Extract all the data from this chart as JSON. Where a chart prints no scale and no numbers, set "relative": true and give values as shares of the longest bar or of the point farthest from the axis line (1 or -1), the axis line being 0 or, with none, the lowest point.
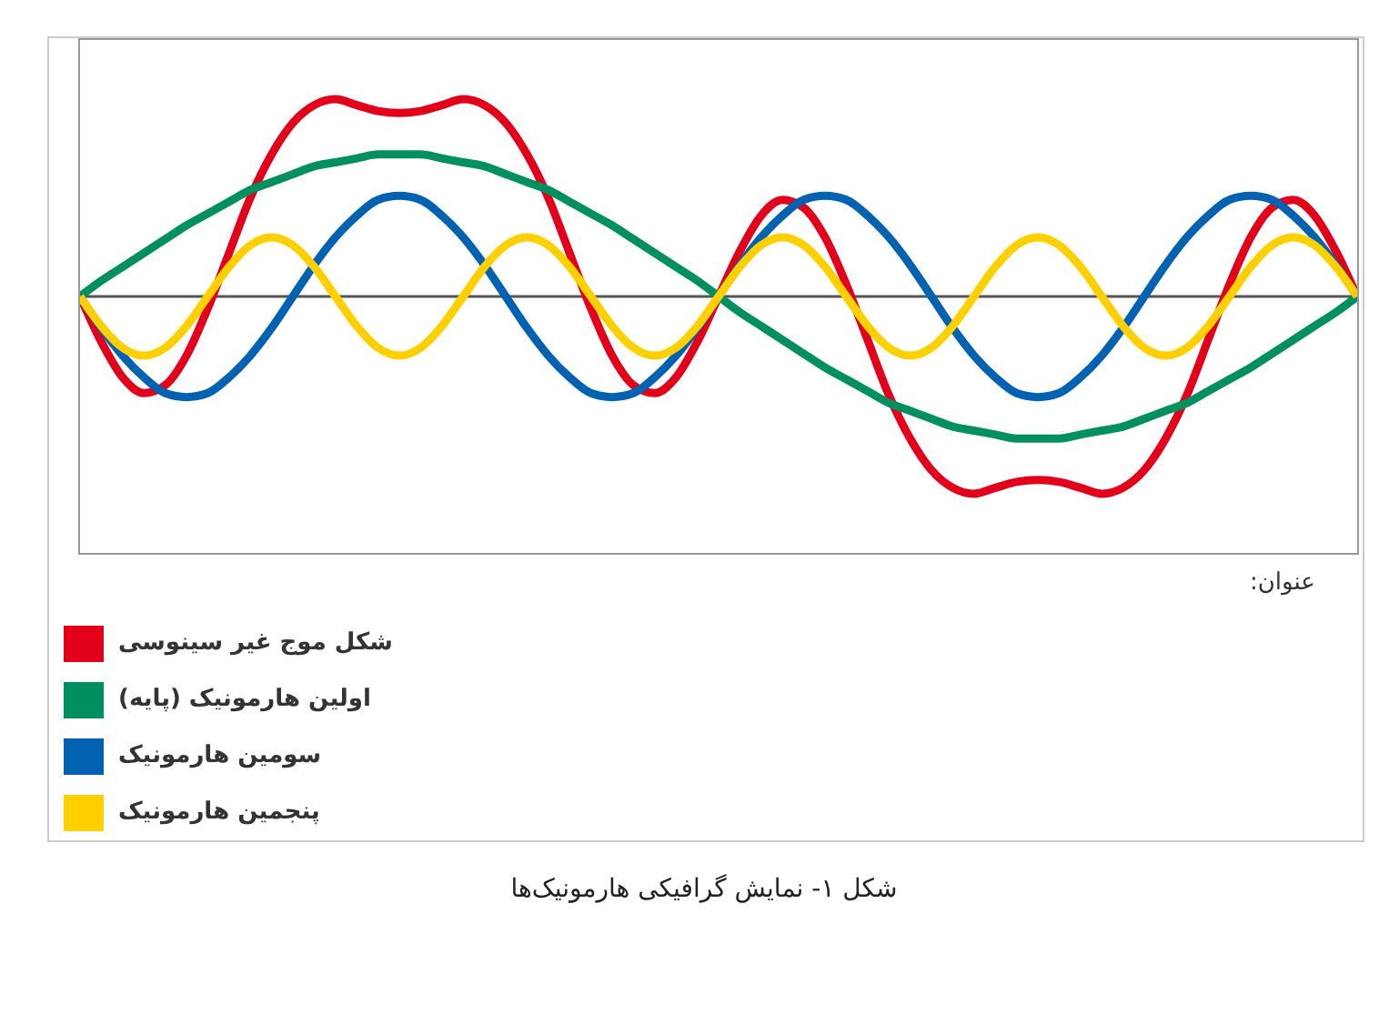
{
  "chart_data": {
    "type": "line",
    "relative": true,
    "legend": "bottom",
    "legend_title": "عنوان:",
    "annotations": [
      "شکل ۱- نمایش گرافیکی هارمونیک‌ها"
    ],
    "marker": "none",
    "line_style": "solid",
    "categories": [
      null,
      null,
      null,
      null,
      null,
      null,
      null,
      null,
      null,
      null,
      null,
      null,
      null,
      null,
      null,
      null,
      null,
      null,
      null,
      null,
      null,
      null,
      null,
      null,
      null,
      null,
      null,
      null,
      null,
      null,
      null,
      null,
      null,
      null,
      null,
      null,
      null,
      null,
      null,
      null,
      null,
      null,
      null,
      null,
      null,
      null,
      null,
      null,
      null,
      null,
      null,
      null,
      null,
      null,
      null,
      null,
      null,
      null,
      null,
      null,
      null
    ],
    "series": [
      {
        "name": "شکل موج غیر سینوسی",
        "color": "#e2001a",
        "values": [
          0,
          -0.23,
          -0.41,
          -0.49,
          -0.45,
          -0.3,
          -0.06,
          0.22,
          0.5,
          0.72,
          0.88,
          0.97,
          1,
          0.97,
          0.94,
          0.93,
          0.94,
          0.97,
          1,
          0.97,
          0.88,
          0.72,
          0.5,
          0.22,
          -0.06,
          -0.3,
          -0.45,
          -0.49,
          -0.41,
          -0.23,
          0,
          0.23,
          0.41,
          0.49,
          0.45,
          0.3,
          0.06,
          -0.22,
          -0.5,
          -0.72,
          -0.88,
          -0.97,
          -1,
          -0.97,
          -0.94,
          -0.93,
          -0.94,
          -0.97,
          -1,
          -0.97,
          -0.88,
          -0.72,
          -0.5,
          -0.22,
          0.06,
          0.3,
          0.45,
          0.49,
          0.41,
          0.23,
          0
        ]
      },
      {
        "name": "اولین هارمونیک (پایه)",
        "color": "#00905f",
        "values": [
          0,
          0.08,
          0.15,
          0.22,
          0.29,
          0.36,
          0.42,
          0.48,
          0.54,
          0.58,
          0.62,
          0.66,
          0.68,
          0.7,
          0.72,
          0.72,
          0.72,
          0.7,
          0.68,
          0.66,
          0.62,
          0.58,
          0.54,
          0.48,
          0.42,
          0.36,
          0.29,
          0.22,
          0.15,
          0.08,
          0,
          -0.08,
          -0.15,
          -0.22,
          -0.29,
          -0.36,
          -0.42,
          -0.48,
          -0.54,
          -0.58,
          -0.62,
          -0.66,
          -0.68,
          -0.7,
          -0.72,
          -0.72,
          -0.72,
          -0.7,
          -0.68,
          -0.66,
          -0.62,
          -0.58,
          -0.54,
          -0.48,
          -0.42,
          -0.36,
          -0.29,
          -0.22,
          -0.15,
          -0.08,
          0
        ]
      },
      {
        "name": "سومین هارمونیک",
        "color": "#0062b1",
        "values": [
          0,
          -0.16,
          -0.3,
          -0.41,
          -0.49,
          -0.51,
          -0.49,
          -0.41,
          -0.3,
          -0.16,
          0,
          0.16,
          0.3,
          0.41,
          0.49,
          0.51,
          0.49,
          0.41,
          0.3,
          0.16,
          0,
          -0.16,
          -0.3,
          -0.41,
          -0.49,
          -0.51,
          -0.49,
          -0.41,
          -0.3,
          -0.16,
          0,
          0.16,
          0.3,
          0.41,
          0.49,
          0.51,
          0.49,
          0.41,
          0.3,
          0.16,
          0,
          -0.16,
          -0.3,
          -0.41,
          -0.49,
          -0.51,
          -0.49,
          -0.41,
          -0.3,
          -0.16,
          0,
          0.16,
          0.3,
          0.41,
          0.49,
          0.51,
          0.49,
          0.41,
          0.3,
          0.16,
          0
        ]
      },
      {
        "name": "پنجمین هارمونیک",
        "color": "#ffd000",
        "values": [
          0,
          -0.15,
          -0.26,
          -0.3,
          -0.26,
          -0.15,
          0,
          0.15,
          0.26,
          0.3,
          0.26,
          0.15,
          0,
          -0.15,
          -0.26,
          -0.3,
          -0.26,
          -0.15,
          0,
          0.15,
          0.26,
          0.3,
          0.26,
          0.15,
          0,
          -0.15,
          -0.26,
          -0.3,
          -0.26,
          -0.15,
          0,
          0.15,
          0.26,
          0.3,
          0.26,
          0.15,
          0,
          -0.15,
          -0.26,
          -0.3,
          -0.26,
          -0.15,
          0,
          0.15,
          0.26,
          0.3,
          0.26,
          0.15,
          0,
          -0.15,
          -0.26,
          -0.3,
          -0.26,
          -0.15,
          0,
          0.15,
          0.26,
          0.3,
          0.26,
          0.15,
          0
        ]
      }
    ]
  }
}
